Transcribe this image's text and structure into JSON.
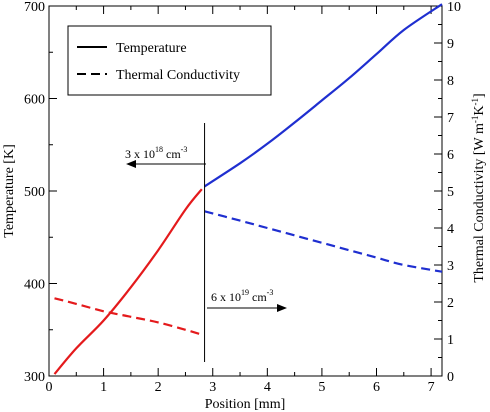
{
  "chart_data": {
    "type": "line",
    "title": "",
    "xlabel": "Position [mm]",
    "ylabel_left": "Temperature [K]",
    "ylabel_right_parts": [
      "Thermal Conductivity [W m",
      "-1",
      "K",
      "-1",
      "]"
    ],
    "xlim": [
      0,
      7.2
    ],
    "ylim_left": [
      300,
      700
    ],
    "ylim_right": [
      0,
      10
    ],
    "x_ticks": [
      "0",
      "1",
      "2",
      "3",
      "4",
      "5",
      "6",
      "7"
    ],
    "y_left_ticks": [
      "300",
      "400",
      "500",
      "600",
      "700"
    ],
    "y_right_ticks": [
      "0",
      "1",
      "2",
      "3",
      "4",
      "5",
      "6",
      "7",
      "8",
      "9",
      "10"
    ],
    "legend": [
      {
        "label": "Temperature",
        "style": "solid"
      },
      {
        "label": "Thermal Conductivity",
        "style": "dashed"
      }
    ],
    "legend_position": "top-left",
    "interface_x": 2.85,
    "series": [
      {
        "name": "Temperature",
        "axis": "left",
        "style": "solid",
        "color": "#e41a1c",
        "x": [
          0.1,
          0.5,
          1.0,
          1.5,
          2.0,
          2.5,
          2.8
        ],
        "y": [
          302,
          330,
          360,
          396,
          436,
          480,
          502
        ]
      },
      {
        "name": "Temperature",
        "axis": "left",
        "style": "solid",
        "color": "#1f2fd0",
        "x": [
          2.85,
          3.5,
          4.0,
          4.5,
          5.0,
          5.5,
          6.0,
          6.5,
          7.2
        ],
        "y": [
          505,
          530,
          551,
          574,
          598,
          622,
          648,
          674,
          702
        ]
      },
      {
        "name": "Thermal Conductivity",
        "axis": "right",
        "style": "dashed",
        "color": "#e41a1c",
        "x": [
          0.1,
          0.5,
          1.0,
          1.5,
          2.0,
          2.5,
          2.8
        ],
        "y": [
          2.1,
          1.95,
          1.75,
          1.6,
          1.45,
          1.25,
          1.12
        ]
      },
      {
        "name": "Thermal Conductivity",
        "axis": "right",
        "style": "dashed",
        "color": "#1f2fd0",
        "x": [
          2.85,
          3.5,
          4.0,
          4.5,
          5.0,
          5.5,
          6.0,
          6.5,
          7.2
        ],
        "y": [
          4.45,
          4.2,
          4.0,
          3.8,
          3.6,
          3.4,
          3.2,
          3.0,
          2.82
        ]
      }
    ],
    "annotations": [
      {
        "id": "left",
        "base": "3 x 10",
        "exp": "18",
        "unit": "cm",
        "unit_exp": "-3",
        "arrow": "left"
      },
      {
        "id": "right",
        "base": "6 x 10",
        "exp": "19",
        "unit": "cm",
        "unit_exp": "-3",
        "arrow": "right"
      }
    ]
  }
}
